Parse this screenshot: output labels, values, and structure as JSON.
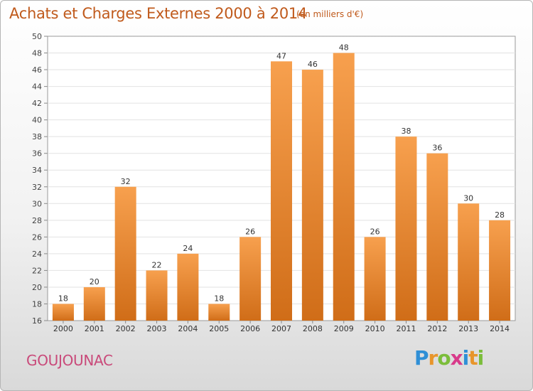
{
  "title": "Achats et Charges Externes 2000 à 2014",
  "subtitle": "(en milliers d'€)",
  "commune": "GOUJOUNAC",
  "logo": {
    "text": "Proxiti",
    "letters": [
      {
        "ch": "P",
        "color": "#2f8fd6"
      },
      {
        "ch": "r",
        "color": "#e8952b"
      },
      {
        "ch": "o",
        "color": "#7bbd3a"
      },
      {
        "ch": "x",
        "color": "#d83a8a"
      },
      {
        "ch": "i",
        "color": "#2f8fd6"
      },
      {
        "ch": "t",
        "color": "#e8952b"
      },
      {
        "ch": "i",
        "color": "#7bbd3a"
      }
    ]
  },
  "colors": {
    "bar_top": "#f7a04e",
    "bar_bottom": "#d06d18",
    "title": "#c05a1c",
    "commune": "#c94a7a",
    "plot_bg": "#ffffff",
    "grid": "#e2e2e2"
  },
  "chart_data": {
    "type": "bar",
    "title": "Achats et Charges Externes 2000 à 2014",
    "subtitle": "(en milliers d'€)",
    "xlabel": "",
    "ylabel": "",
    "categories": [
      "2000",
      "2001",
      "2002",
      "2003",
      "2004",
      "2005",
      "2006",
      "2007",
      "2008",
      "2009",
      "2010",
      "2011",
      "2012",
      "2013",
      "2014"
    ],
    "values": [
      18,
      20,
      32,
      22,
      24,
      18,
      26,
      47,
      46,
      48,
      26,
      38,
      36,
      30,
      28
    ],
    "ylim": [
      16,
      50
    ],
    "yticks": [
      16,
      18,
      20,
      22,
      24,
      26,
      28,
      30,
      32,
      34,
      36,
      38,
      40,
      42,
      44,
      46,
      48,
      50
    ],
    "grid": true,
    "data_labels": true
  }
}
